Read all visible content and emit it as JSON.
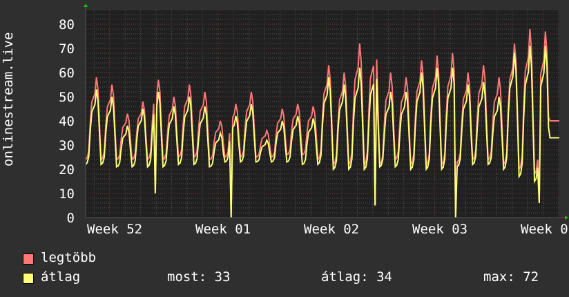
{
  "chart_data": {
    "type": "line",
    "ylabel": "onlinestream.live",
    "ylim": [
      0,
      85.7
    ],
    "yticks": [
      "0",
      "10",
      "20",
      "30",
      "40",
      "50",
      "60",
      "70",
      "80"
    ],
    "xticks": [
      "Week 52",
      "Week 01",
      "Week 02",
      "Week 03",
      "Week 0"
    ],
    "days": 31,
    "series": [
      {
        "name": "legtöbb",
        "color": "#ff7777",
        "daily_peak": [
          58,
          55,
          43,
          48,
          57,
          50,
          55,
          52,
          40,
          47,
          52,
          36,
          45,
          47,
          46,
          63,
          60,
          72,
          73,
          60,
          58,
          65,
          67,
          68,
          60,
          63,
          58,
          72,
          78,
          77,
          40
        ],
        "daily_low": [
          24,
          24,
          24,
          24,
          24,
          24,
          25,
          25,
          24,
          25,
          25,
          25,
          25,
          26,
          26,
          24,
          22,
          22,
          22,
          22,
          24,
          22,
          22,
          22,
          23,
          24,
          24,
          22,
          20,
          18,
          40
        ]
      },
      {
        "name": "átlag",
        "color": "#ffff77",
        "daily_peak": [
          53,
          50,
          38,
          45,
          52,
          46,
          50,
          46,
          35,
          42,
          47,
          32,
          40,
          42,
          41,
          58,
          55,
          62,
          64,
          52,
          52,
          60,
          62,
          62,
          55,
          56,
          50,
          68,
          71,
          71,
          33
        ],
        "daily_low": [
          22,
          22,
          21,
          21,
          21,
          21,
          22,
          22,
          21,
          23,
          23,
          23,
          23,
          23,
          22,
          22,
          20,
          20,
          20,
          21,
          21,
          20,
          20,
          20,
          21,
          22,
          22,
          20,
          17,
          15,
          33
        ]
      }
    ],
    "dropouts": [
      {
        "day": 4.5,
        "value": 10
      },
      {
        "day": 9.4,
        "value": 0
      },
      {
        "day": 18.7,
        "value": 5
      },
      {
        "day": 23.9,
        "value": 0
      },
      {
        "day": 29.3,
        "value": 6
      }
    ]
  },
  "legend": {
    "max_label": "legtöbb",
    "avg_label": "átlag",
    "now": "most: 33",
    "avg": "átlag: 34",
    "max": "max: 72"
  }
}
